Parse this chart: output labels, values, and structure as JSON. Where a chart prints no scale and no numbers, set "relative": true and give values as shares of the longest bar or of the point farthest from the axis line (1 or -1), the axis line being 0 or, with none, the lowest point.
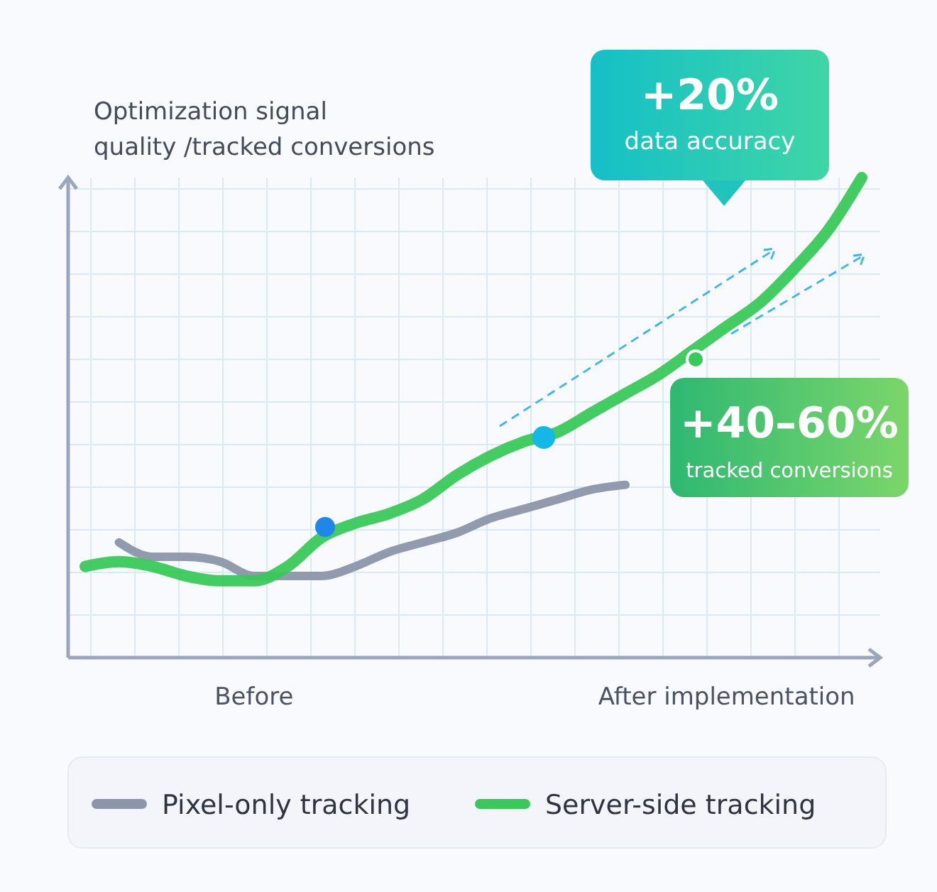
{
  "chart_data": {
    "type": "line",
    "relative": true,
    "ylabel": "Optimization signal\nquality /tracked conversions",
    "categories": [
      null,
      null,
      null,
      null,
      null,
      "Before",
      null,
      null,
      null,
      null,
      null,
      null,
      null,
      null,
      null,
      null,
      null,
      null,
      null,
      "After implementation",
      null,
      null,
      null,
      null
    ],
    "series": [
      {
        "name": "Pixel-only tracking",
        "color": "#8c96aa",
        "values": [
          null,
          0.24,
          0.21,
          0.21,
          0.2,
          0.17,
          0.17,
          0.17,
          0.19,
          0.22,
          0.24,
          0.26,
          0.29,
          0.31,
          0.33,
          0.35,
          0.36,
          null,
          null,
          null,
          null,
          null,
          null,
          null
        ]
      },
      {
        "name": "Server-side tracking",
        "color": "#38c95a",
        "values": [
          0.19,
          0.2,
          0.19,
          0.17,
          0.16,
          0.16,
          0.19,
          0.25,
          0.28,
          0.3,
          0.33,
          0.38,
          0.42,
          0.45,
          0.47,
          0.51,
          0.55,
          0.59,
          0.64,
          0.69,
          0.74,
          0.81,
          0.89,
          1
        ]
      }
    ],
    "annotations": [
      "+20%\ndata accuracy",
      "+40–60%\ntracked conversions"
    ],
    "grid": true,
    "legend": "bottom",
    "line_style": "solid",
    "marker": "none"
  }
}
